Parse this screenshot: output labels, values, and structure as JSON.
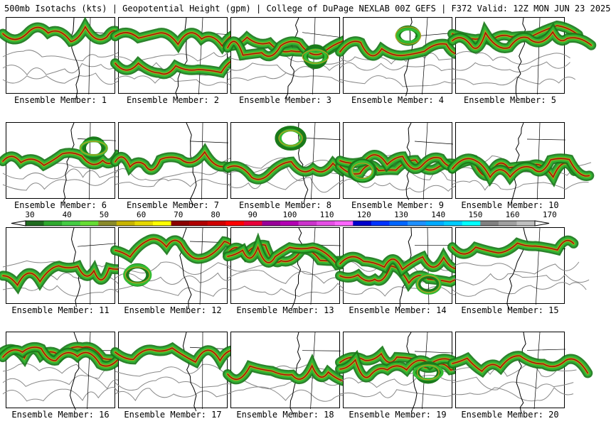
{
  "title": "500mb Isotachs (kts) | Geopotential Height (gpm) | College of DuPage NEXLAB   00Z GEFS | F372 Valid: 12Z MON JUN 23 2025",
  "members": [
    "Ensemble Member: 1",
    "Ensemble Member: 2",
    "Ensemble Member: 3",
    "Ensemble Member: 4",
    "Ensemble Member: 5",
    "Ensemble Member: 6",
    "Ensemble Member: 7",
    "Ensemble Member: 8",
    "Ensemble Member: 9",
    "Ensemble Member: 10",
    "Ensemble Member: 11",
    "Ensemble Member: 12",
    "Ensemble Member: 13",
    "Ensemble Member: 14",
    "Ensemble Member: 15",
    "Ensemble Member: 16",
    "Ensemble Member: 17",
    "Ensemble Member: 18",
    "Ensemble Member: 19",
    "Ensemble Member: 20"
  ],
  "colorbar": {
    "labels": [
      "30",
      "40",
      "50",
      "60",
      "70",
      "80",
      "90",
      "100",
      "110",
      "120",
      "130",
      "140",
      "150",
      "160",
      "170"
    ],
    "colors": [
      "#1e6b1e",
      "#2da82d",
      "#44cc44",
      "#66dd33",
      "#8a8a2a",
      "#c8b400",
      "#e6d800",
      "#ffff00",
      "#8b0000",
      "#b00000",
      "#d00000",
      "#ff0000",
      "#e8003a",
      "#990099",
      "#b300b3",
      "#cc33cc",
      "#e64de6",
      "#ff66ff",
      "#0000cc",
      "#0033ff",
      "#0066ff",
      "#1e90ff",
      "#00aaff",
      "#00ccff",
      "#00ffff",
      "#808080",
      "#a0a0a0",
      "#c0c0c0"
    ]
  },
  "colors": {
    "jet_dark": "#1a7a1a",
    "jet_green": "#33bb33",
    "jet_olive": "#b0a020",
    "jet_red": "#aa0000",
    "contour": "#888888",
    "coast": "#000000"
  }
}
